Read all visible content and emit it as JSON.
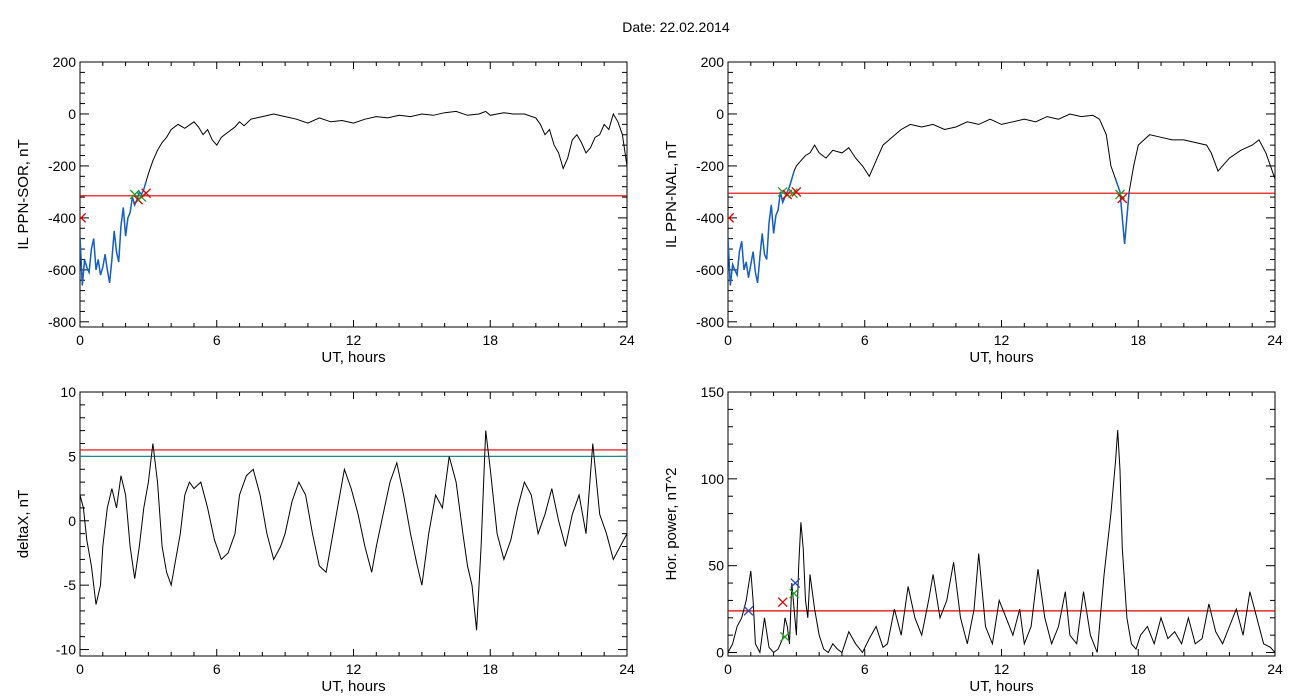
{
  "page": {
    "title": "Date:  22.02.2014"
  },
  "colors": {
    "data": "#000000",
    "highlight": "#1560c8",
    "threshold": "#e00000",
    "threshold2": "#1a8a8a",
    "marker_green": "#20a020",
    "marker_red": "#e00000",
    "marker_blue": "#2040c0"
  },
  "chart_data": [
    {
      "type": "line",
      "xlabel": "UT, hours",
      "ylabel": "IL PPN-SOR, nT",
      "xlim": [
        0,
        24
      ],
      "ylim": [
        -820,
        200
      ],
      "xticks": [
        "0",
        "6",
        "12",
        "18",
        "24"
      ],
      "yticks": [
        "-800",
        "-600",
        "-400",
        "-200",
        "0",
        "200"
      ],
      "threshold": -315,
      "series": [
        {
          "x": [
            0,
            0.1,
            0.2,
            0.3,
            0.4,
            0.5,
            0.6,
            0.7,
            0.8,
            0.9,
            1.0,
            1.1,
            1.2,
            1.3,
            1.4,
            1.5,
            1.6,
            1.7,
            1.8,
            1.9,
            2.0,
            2.1,
            2.2,
            2.3,
            2.4,
            2.5,
            2.6,
            2.7,
            2.8,
            2.9,
            3.0,
            3.2,
            3.4,
            3.6,
            3.8,
            4.0,
            4.3,
            4.6,
            5.0,
            5.2,
            5.4,
            5.6,
            5.8,
            6.0,
            6.2,
            6.5,
            6.8,
            7.0,
            7.2,
            7.5,
            8.0,
            8.5,
            9.0,
            9.5,
            10.0,
            10.5,
            11.0,
            11.5,
            12.0,
            12.5,
            13.0,
            13.5,
            14.0,
            14.5,
            15.0,
            15.5,
            16.0,
            16.5,
            17.0,
            17.5,
            17.8,
            18.0,
            18.3,
            18.6,
            19.0,
            19.5,
            20.0,
            20.2,
            20.4,
            20.6,
            20.8,
            21.0,
            21.2,
            21.4,
            21.6,
            21.8,
            22.0,
            22.2,
            22.4,
            22.6,
            22.8,
            23.0,
            23.2,
            23.4,
            23.6,
            23.8,
            24.0
          ],
          "y": [
            -470,
            -660,
            -560,
            -590,
            -610,
            -520,
            -480,
            -600,
            -560,
            -620,
            -590,
            -540,
            -600,
            -650,
            -560,
            -450,
            -530,
            -570,
            -430,
            -360,
            -470,
            -400,
            -380,
            -320,
            -350,
            -330,
            -300,
            -310,
            -290,
            -260,
            -230,
            -180,
            -140,
            -110,
            -90,
            -60,
            -40,
            -55,
            -30,
            -50,
            -80,
            -60,
            -100,
            -120,
            -90,
            -70,
            -50,
            -30,
            -45,
            -20,
            -10,
            0,
            -10,
            -20,
            -35,
            -15,
            -30,
            -25,
            -35,
            -20,
            -10,
            -15,
            -5,
            -10,
            0,
            -5,
            5,
            10,
            -5,
            0,
            10,
            -5,
            0,
            5,
            0,
            0,
            -15,
            -40,
            -80,
            -60,
            -120,
            -150,
            -210,
            -170,
            -100,
            -80,
            -110,
            -150,
            -130,
            -90,
            -80,
            -40,
            -60,
            0,
            -30,
            -80,
            -200
          ]
        }
      ],
      "highlight_range": [
        0,
        2.9
      ],
      "markers": [
        {
          "x": 2.4,
          "y": -310,
          "color": "green"
        },
        {
          "x": 2.55,
          "y": -330,
          "color": "red"
        },
        {
          "x": 2.7,
          "y": -320,
          "color": "green"
        },
        {
          "x": 2.9,
          "y": -305,
          "color": "red"
        },
        {
          "x": 0.05,
          "y": -400,
          "color": "red"
        }
      ]
    },
    {
      "type": "line",
      "xlabel": "UT, hours",
      "ylabel": "IL PPN-NAL, nT",
      "xlim": [
        0,
        24
      ],
      "ylim": [
        -820,
        200
      ],
      "xticks": [
        "0",
        "6",
        "12",
        "18",
        "24"
      ],
      "yticks": [
        "-800",
        "-600",
        "-400",
        "-200",
        "0",
        "200"
      ],
      "threshold": -305,
      "series": [
        {
          "x": [
            0,
            0.1,
            0.2,
            0.3,
            0.4,
            0.5,
            0.6,
            0.7,
            0.8,
            0.9,
            1.0,
            1.1,
            1.2,
            1.3,
            1.4,
            1.5,
            1.6,
            1.7,
            1.8,
            1.9,
            2.0,
            2.1,
            2.2,
            2.3,
            2.4,
            2.5,
            2.6,
            2.7,
            2.8,
            2.9,
            3.0,
            3.2,
            3.4,
            3.6,
            3.8,
            4.0,
            4.3,
            4.6,
            5.0,
            5.3,
            5.6,
            5.9,
            6.2,
            6.5,
            6.8,
            7.2,
            7.6,
            8.0,
            8.5,
            9.0,
            9.5,
            10.0,
            10.5,
            11.0,
            11.5,
            12.0,
            12.5,
            13.0,
            13.5,
            14.0,
            14.5,
            15.0,
            15.5,
            16.0,
            16.3,
            16.6,
            16.8,
            17.0,
            17.2,
            17.4,
            17.6,
            17.8,
            18.0,
            18.5,
            19.0,
            19.5,
            20.0,
            20.5,
            21.0,
            21.2,
            21.5,
            22.0,
            22.5,
            23.0,
            23.3,
            23.6,
            24.0
          ],
          "y": [
            -480,
            -660,
            -580,
            -600,
            -620,
            -530,
            -490,
            -600,
            -570,
            -630,
            -580,
            -530,
            -610,
            -650,
            -550,
            -460,
            -540,
            -560,
            -420,
            -350,
            -460,
            -390,
            -370,
            -300,
            -340,
            -320,
            -300,
            -280,
            -250,
            -220,
            -200,
            -180,
            -160,
            -150,
            -120,
            -150,
            -170,
            -140,
            -150,
            -130,
            -170,
            -200,
            -240,
            -180,
            -120,
            -90,
            -60,
            -40,
            -50,
            -40,
            -60,
            -50,
            -30,
            -40,
            -20,
            -40,
            -30,
            -20,
            -30,
            -10,
            -20,
            0,
            -10,
            -5,
            -20,
            -80,
            -200,
            -250,
            -300,
            -500,
            -300,
            -200,
            -120,
            -80,
            -90,
            -100,
            -100,
            -110,
            -120,
            -150,
            -220,
            -170,
            -140,
            -120,
            -100,
            -150,
            -250
          ]
        }
      ],
      "highlight_range": [
        0,
        2.9
      ],
      "highlight_range_2": [
        17.0,
        17.6
      ],
      "markers": [
        {
          "x": 2.4,
          "y": -300,
          "color": "green"
        },
        {
          "x": 2.6,
          "y": -310,
          "color": "red"
        },
        {
          "x": 2.85,
          "y": -305,
          "color": "green"
        },
        {
          "x": 3.0,
          "y": -300,
          "color": "red"
        },
        {
          "x": 17.2,
          "y": -310,
          "color": "green"
        },
        {
          "x": 17.3,
          "y": -325,
          "color": "red"
        },
        {
          "x": 0.05,
          "y": -400,
          "color": "red"
        }
      ]
    },
    {
      "type": "line",
      "xlabel": "UT, hours",
      "ylabel": "deltaX, nT",
      "xlim": [
        0,
        24
      ],
      "ylim": [
        -10.5,
        10
      ],
      "xticks": [
        "0",
        "6",
        "12",
        "18",
        "24"
      ],
      "yticks": [
        "-10",
        "-5",
        "0",
        "5",
        "10"
      ],
      "threshold": 5.5,
      "threshold2": 5.0,
      "series": [
        {
          "x": [
            0,
            0.15,
            0.3,
            0.5,
            0.7,
            0.9,
            1.0,
            1.2,
            1.4,
            1.6,
            1.8,
            2.0,
            2.2,
            2.4,
            2.6,
            2.8,
            3.0,
            3.2,
            3.4,
            3.6,
            3.8,
            4.0,
            4.2,
            4.4,
            4.6,
            4.8,
            5.0,
            5.3,
            5.6,
            5.9,
            6.2,
            6.5,
            6.8,
            7.0,
            7.3,
            7.6,
            7.9,
            8.2,
            8.5,
            8.8,
            9.0,
            9.3,
            9.6,
            9.9,
            10.2,
            10.5,
            10.8,
            11.0,
            11.3,
            11.6,
            11.9,
            12.2,
            12.5,
            12.8,
            13.0,
            13.3,
            13.6,
            13.9,
            14.2,
            14.5,
            14.8,
            15.0,
            15.3,
            15.6,
            15.9,
            16.2,
            16.5,
            16.8,
            17.0,
            17.2,
            17.4,
            17.6,
            17.8,
            18.0,
            18.3,
            18.6,
            18.9,
            19.2,
            19.5,
            19.8,
            20.1,
            20.4,
            20.7,
            21.0,
            21.3,
            21.6,
            21.9,
            22.2,
            22.5,
            22.8,
            23.1,
            23.4,
            23.7,
            24.0
          ],
          "y": [
            2.0,
            1.0,
            -1.5,
            -3.5,
            -6.5,
            -5.0,
            -2.0,
            1.0,
            2.5,
            1.0,
            3.5,
            2.0,
            -2.0,
            -4.5,
            -2.0,
            1.0,
            3.0,
            6.0,
            3.0,
            -2.0,
            -4.0,
            -5.0,
            -3.0,
            -1.0,
            2.0,
            3.0,
            2.5,
            3.0,
            1.0,
            -1.5,
            -3.0,
            -2.5,
            -1.0,
            2.0,
            3.5,
            4.0,
            2.0,
            -1.0,
            -3.0,
            -2.0,
            -1.0,
            1.5,
            3.0,
            2.0,
            -1.0,
            -3.5,
            -4.0,
            -2.0,
            1.0,
            4.0,
            2.5,
            0.5,
            -2.0,
            -4.0,
            -2.0,
            0.5,
            3.0,
            4.5,
            2.0,
            -1.0,
            -3.5,
            -5.0,
            -1.0,
            2.0,
            1.0,
            5.0,
            3.0,
            -1.0,
            -3.5,
            -5.0,
            -8.5,
            -2.0,
            7.0,
            4.0,
            -1.0,
            -3.0,
            -1.5,
            1.0,
            3.0,
            2.0,
            -1.0,
            0.5,
            2.5,
            0.0,
            -2.0,
            0.5,
            2.0,
            -1.0,
            6.0,
            0.5,
            -1.0,
            -3.0,
            -2.0,
            -1.0
          ]
        }
      ]
    },
    {
      "type": "line",
      "xlabel": "UT, hours",
      "ylabel": "Hor. power, nT^2",
      "xlim": [
        0,
        24
      ],
      "ylim": [
        -2,
        150
      ],
      "xticks": [
        "0",
        "6",
        "12",
        "18",
        "24"
      ],
      "yticks": [
        "0",
        "50",
        "100",
        "150"
      ],
      "threshold": 24,
      "series": [
        {
          "x": [
            0,
            0.2,
            0.4,
            0.6,
            0.8,
            1.0,
            1.1,
            1.2,
            1.4,
            1.6,
            1.8,
            2.0,
            2.2,
            2.4,
            2.5,
            2.6,
            2.7,
            2.8,
            3.0,
            3.1,
            3.2,
            3.3,
            3.4,
            3.5,
            3.6,
            3.8,
            4.0,
            4.2,
            4.4,
            4.6,
            4.8,
            5.0,
            5.3,
            5.6,
            5.9,
            6.2,
            6.5,
            6.8,
            7.0,
            7.3,
            7.6,
            7.9,
            8.2,
            8.5,
            8.8,
            9.0,
            9.3,
            9.6,
            9.9,
            10.2,
            10.5,
            10.8,
            11.0,
            11.3,
            11.6,
            11.9,
            12.2,
            12.5,
            12.8,
            13.0,
            13.3,
            13.6,
            13.9,
            14.2,
            14.5,
            14.8,
            15.0,
            15.3,
            15.6,
            15.9,
            16.2,
            16.5,
            16.8,
            17.0,
            17.1,
            17.2,
            17.3,
            17.5,
            17.7,
            17.9,
            18.1,
            18.4,
            18.7,
            19.0,
            19.3,
            19.6,
            19.9,
            20.2,
            20.5,
            20.8,
            21.1,
            21.4,
            21.7,
            22.0,
            22.3,
            22.6,
            22.9,
            23.2,
            23.5,
            23.8,
            24.0
          ],
          "y": [
            0,
            5,
            15,
            20,
            30,
            47,
            30,
            5,
            0,
            20,
            3,
            0,
            2,
            8,
            20,
            15,
            5,
            40,
            10,
            50,
            75,
            60,
            30,
            20,
            45,
            25,
            10,
            2,
            0,
            5,
            2,
            0,
            12,
            5,
            0,
            8,
            15,
            3,
            5,
            25,
            10,
            38,
            20,
            10,
            30,
            45,
            20,
            30,
            52,
            20,
            5,
            25,
            57,
            15,
            5,
            30,
            20,
            10,
            25,
            5,
            15,
            48,
            20,
            5,
            15,
            35,
            10,
            5,
            35,
            10,
            0,
            45,
            80,
            110,
            128,
            105,
            60,
            20,
            5,
            2,
            10,
            15,
            5,
            20,
            8,
            12,
            5,
            20,
            5,
            8,
            28,
            12,
            5,
            15,
            25,
            10,
            35,
            20,
            5,
            3,
            0
          ]
        }
      ],
      "markers": [
        {
          "x": 0.9,
          "y": 24,
          "color": "blue"
        },
        {
          "x": 2.4,
          "y": 29,
          "color": "red"
        },
        {
          "x": 2.5,
          "y": 9,
          "color": "green"
        },
        {
          "x": 2.9,
          "y": 34,
          "color": "green"
        },
        {
          "x": 2.95,
          "y": 40,
          "color": "blue"
        }
      ]
    }
  ]
}
